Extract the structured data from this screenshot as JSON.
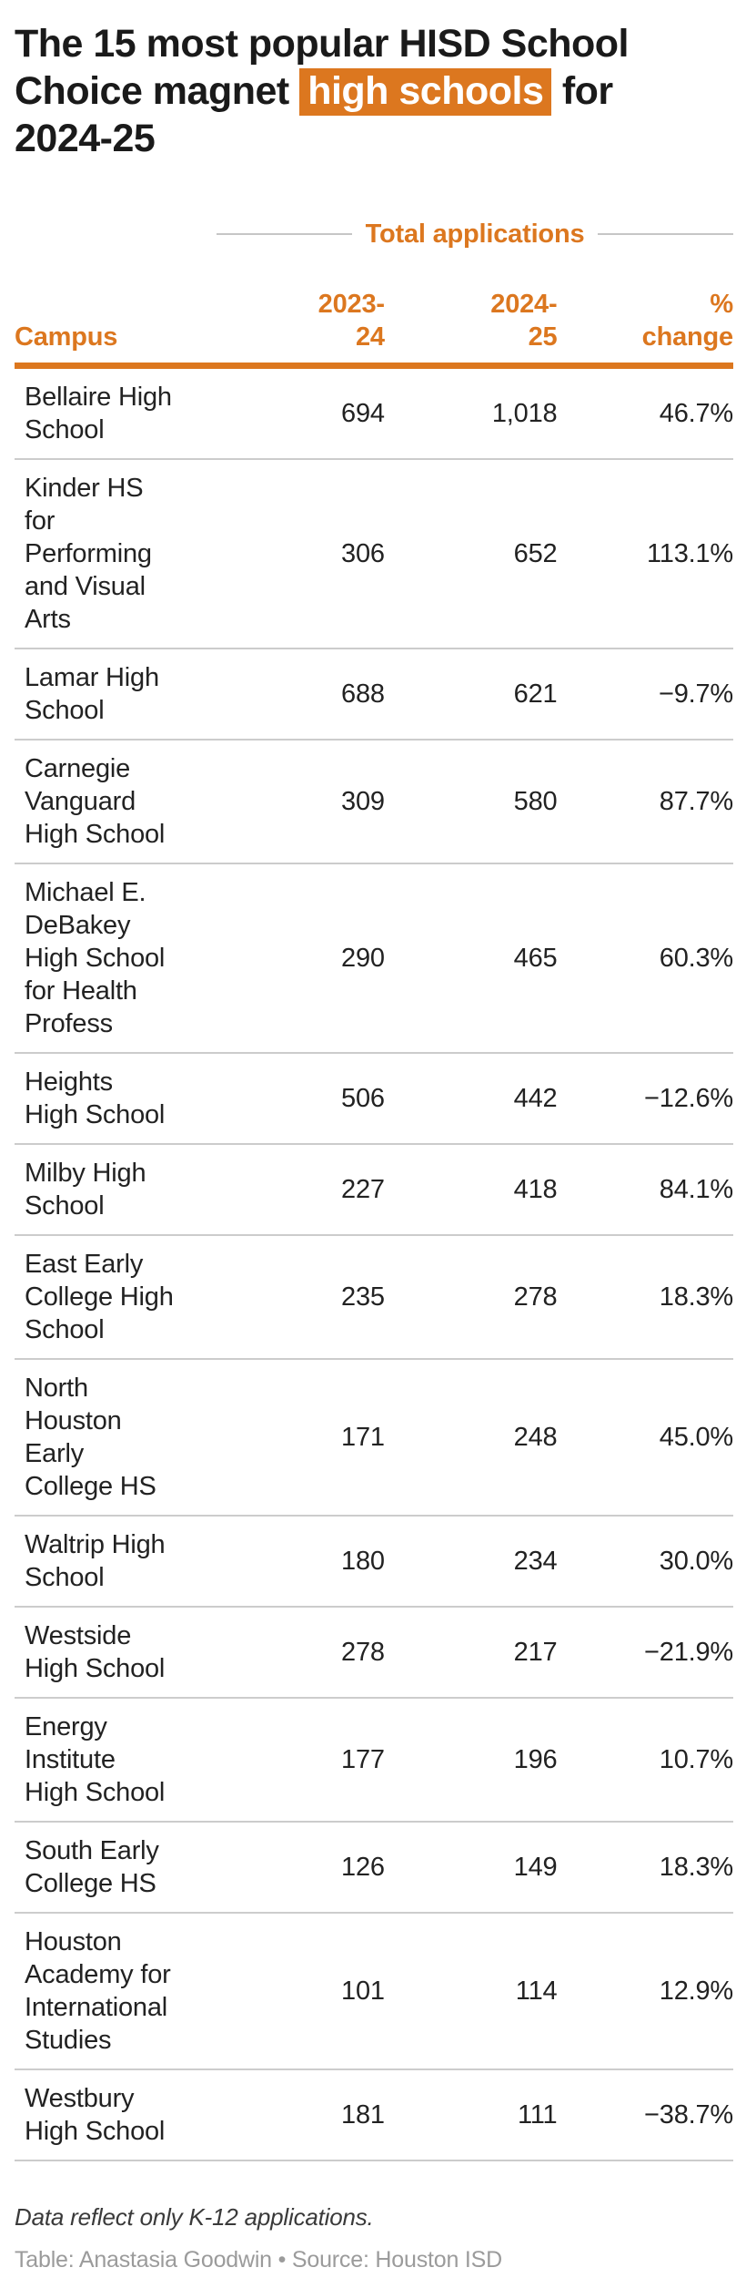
{
  "accent_color": "#DC771F",
  "separator_color": "#cccccc",
  "title": {
    "line1": "The 15 most popular HISD School",
    "line2_pre": "Choice magnet",
    "line2_highlight": "high schools",
    "line2_post": "for",
    "line3": "2024-25"
  },
  "group_header": {
    "label": "Total applications"
  },
  "table": {
    "columns": {
      "campus": "Campus",
      "y1": "2023-\n24",
      "y2": "2024-\n25",
      "change": "%\nchange"
    },
    "rows": [
      {
        "name": "Bellaire High\nSchool",
        "y1": "694",
        "y2": "1,018",
        "change": "46.7%"
      },
      {
        "name": "Kinder HS\nfor\nPerforming\nand Visual\nArts",
        "y1": "306",
        "y2": "652",
        "change": "113.1%"
      },
      {
        "name": "Lamar High\nSchool",
        "y1": "688",
        "y2": "621",
        "change": "−9.7%"
      },
      {
        "name": "Carnegie\nVanguard\nHigh School",
        "y1": "309",
        "y2": "580",
        "change": "87.7%"
      },
      {
        "name": "Michael E.\nDeBakey\nHigh School\nfor Health\nProfess",
        "y1": "290",
        "y2": "465",
        "change": "60.3%"
      },
      {
        "name": "Heights\nHigh School",
        "y1": "506",
        "y2": "442",
        "change": "−12.6%"
      },
      {
        "name": "Milby High\nSchool",
        "y1": "227",
        "y2": "418",
        "change": "84.1%"
      },
      {
        "name": "East Early\nCollege High\nSchool",
        "y1": "235",
        "y2": "278",
        "change": "18.3%"
      },
      {
        "name": "North\nHouston\nEarly\nCollege HS",
        "y1": "171",
        "y2": "248",
        "change": "45.0%"
      },
      {
        "name": "Waltrip High\nSchool",
        "y1": "180",
        "y2": "234",
        "change": "30.0%"
      },
      {
        "name": "Westside\nHigh School",
        "y1": "278",
        "y2": "217",
        "change": "−21.9%"
      },
      {
        "name": "Energy\nInstitute\nHigh School",
        "y1": "177",
        "y2": "196",
        "change": "10.7%"
      },
      {
        "name": "South Early\nCollege HS",
        "y1": "126",
        "y2": "149",
        "change": "18.3%"
      },
      {
        "name": "Houston\nAcademy for\nInternational\nStudies",
        "y1": "101",
        "y2": "114",
        "change": "12.9%"
      },
      {
        "name": "Westbury\nHigh School",
        "y1": "181",
        "y2": "111",
        "change": "−38.7%"
      }
    ]
  },
  "footnote": "Data reflect only K-12 applications.",
  "credit": "Table: Anastasia Goodwin • Source: Houston ISD",
  "chart_data": {
    "type": "table",
    "title": "The 15 most popular HISD School Choice magnet high schools for 2024-25",
    "column_group": "Total applications",
    "columns": [
      "Campus",
      "2023-24",
      "2024-25",
      "% change"
    ],
    "categories": [
      "Bellaire High School",
      "Kinder HS for Performing and Visual Arts",
      "Lamar High School",
      "Carnegie Vanguard High School",
      "Michael E. DeBakey High School for Health Profess",
      "Heights High School",
      "Milby High School",
      "East Early College High School",
      "North Houston Early College HS",
      "Waltrip High School",
      "Westside High School",
      "Energy Institute High School",
      "South Early College HS",
      "Houston Academy for International Studies",
      "Westbury High School"
    ],
    "series": [
      {
        "name": "2023-24",
        "values": [
          694,
          306,
          688,
          309,
          290,
          506,
          227,
          235,
          171,
          180,
          278,
          177,
          126,
          101,
          181
        ]
      },
      {
        "name": "2024-25",
        "values": [
          1018,
          652,
          621,
          580,
          465,
          442,
          418,
          278,
          248,
          234,
          217,
          196,
          149,
          114,
          111
        ]
      },
      {
        "name": "% change",
        "values": [
          46.7,
          113.1,
          -9.7,
          87.7,
          60.3,
          -12.6,
          84.1,
          18.3,
          45.0,
          30.0,
          -21.9,
          10.7,
          18.3,
          12.9,
          -38.7
        ]
      }
    ],
    "footnote": "Data reflect only K-12 applications.",
    "credit": "Table: Anastasia Goodwin • Source: Houston ISD"
  }
}
